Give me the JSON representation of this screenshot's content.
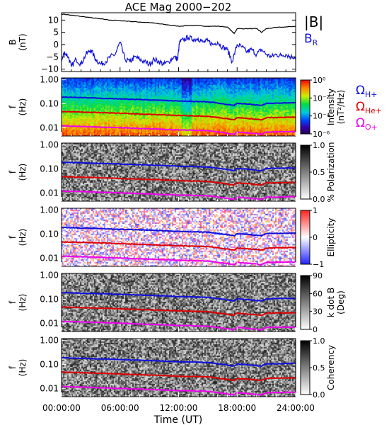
{
  "chart_data": {
    "type": "spectrogram",
    "title": "ACE Mag 2000−202",
    "x_axis": {
      "label": "Time (UT)",
      "range_hours": [
        0,
        24
      ],
      "tick_labels": [
        "00:00:00",
        "06:00:00",
        "12:00:00",
        "18:00:00",
        "24:00:00"
      ]
    },
    "panels": [
      {
        "kind": "line",
        "ylabel": "B",
        "ylabel_unit": "(nT)",
        "ylim": [
          -11,
          13
        ],
        "yticks": [
          "10",
          "5",
          "0",
          "−5",
          "−10"
        ],
        "legend": [
          {
            "label": "|B|",
            "color": "#000000"
          },
          {
            "label": "B",
            "sub": "R",
            "color": "#1010dd"
          }
        ],
        "series": [
          {
            "name": "|B|",
            "color": "#000000",
            "x": [
              0,
              1,
              2,
              3,
              4,
              5,
              6,
              7,
              8,
              9,
              10,
              11,
              12,
              13,
              14,
              15,
              16,
              17,
              17.7,
              18,
              19,
              20,
              20.5,
              21,
              22,
              23,
              24
            ],
            "y": [
              12.5,
              12,
              11.5,
              11,
              10.5,
              10,
              9.8,
              9.5,
              9.2,
              9,
              8.5,
              8,
              7.5,
              7.8,
              7.7,
              7.5,
              7.5,
              7.2,
              4.5,
              6.5,
              6.5,
              6.5,
              5,
              6.5,
              7,
              7.2,
              7.5
            ]
          },
          {
            "name": "B_R",
            "color": "#1010dd",
            "x": [
              0,
              0.3,
              0.7,
              1,
              1.5,
              2,
              2.5,
              3,
              3.5,
              4,
              4.5,
              5,
              5.5,
              6,
              6.5,
              7,
              7.5,
              8,
              8.5,
              9,
              9.5,
              10,
              10.5,
              11,
              11.5,
              11.9,
              12.1,
              12.5,
              13,
              13.5,
              14,
              14.5,
              15,
              15.5,
              16,
              16.5,
              17,
              17.5,
              18,
              18.5,
              19,
              19.5,
              20,
              20.5,
              21,
              21.5,
              22,
              22.5,
              23,
              23.5,
              24
            ],
            "y": [
              -7,
              -3,
              -5,
              -9,
              -6,
              -8,
              -4,
              -2,
              -6,
              -8,
              -7,
              -5,
              -4,
              1,
              -6,
              -7,
              -5,
              -6,
              -7,
              -8,
              -6,
              -7,
              -8,
              -7,
              -5,
              -6,
              1,
              2,
              3,
              2,
              2.5,
              1,
              1.5,
              0,
              1,
              -1,
              -2,
              -7,
              0,
              -1,
              -3,
              -2,
              -4,
              -2,
              -4,
              -5,
              -4,
              -4.5,
              -4,
              -5,
              -5
            ]
          }
        ]
      },
      {
        "kind": "spectrogram",
        "ylabel": "f",
        "ylabel_unit": "(Hz)",
        "yticks": [
          "1.00",
          "0.10",
          "0.01"
        ],
        "colorbar": {
          "palette": "rainbow",
          "label": "Intensity",
          "label_unit": "(nT²/Hz)",
          "tick_labels": [
            "10⁰",
            "10⁻²",
            "10⁻⁴",
            "10⁻⁶"
          ]
        },
        "cyclotron_labels": [
          {
            "label": "Ω",
            "sub": "H+",
            "color": "#1010dd"
          },
          {
            "label": "Ω",
            "sub": "He+",
            "color": "#dd0000"
          },
          {
            "label": "Ω",
            "sub": "O+",
            "color": "#ee00ee"
          }
        ]
      },
      {
        "kind": "spectrogram",
        "ylabel": "f",
        "ylabel_unit": "(Hz)",
        "yticks": [
          "1.00",
          "0.10",
          "0.01"
        ],
        "colorbar": {
          "palette": "gray",
          "label": "% Polarization",
          "label_unit": "",
          "tick_labels": [
            "1.0",
            "0.5",
            "0.0"
          ]
        }
      },
      {
        "kind": "spectrogram",
        "ylabel": "f",
        "ylabel_unit": "(Hz)",
        "yticks": [
          "1.00",
          "0.10",
          "0.01"
        ],
        "colorbar": {
          "palette": "bluered",
          "label": "Ellipticity",
          "label_unit": "",
          "tick_labels": [
            "1",
            "0",
            "−1"
          ]
        }
      },
      {
        "kind": "spectrogram",
        "ylabel": "f",
        "ylabel_unit": "(Hz)",
        "yticks": [
          "1.00",
          "0.10",
          "0.01"
        ],
        "colorbar": {
          "palette": "gray",
          "label": "k dot B",
          "label_unit": "(Deg)",
          "tick_labels": [
            "90",
            "60",
            "30",
            "0"
          ]
        }
      },
      {
        "kind": "spectrogram",
        "ylabel": "f",
        "ylabel_unit": "(Hz)",
        "yticks": [
          "1.00",
          "0.10",
          "0.01"
        ],
        "colorbar": {
          "palette": "gray",
          "label": "Coherency",
          "label_unit": "",
          "tick_labels": [
            "1.0",
            "0.5",
            "0.0"
          ]
        }
      }
    ],
    "gyrofrequency_curves": [
      {
        "name": "H+",
        "color": "#1010dd",
        "x": [
          0,
          3,
          6,
          9,
          12,
          15,
          17.7,
          18,
          20.5,
          21,
          24
        ],
        "y": [
          0.19,
          0.175,
          0.16,
          0.145,
          0.13,
          0.12,
          0.085,
          0.105,
          0.085,
          0.105,
          0.11
        ]
      },
      {
        "name": "He+",
        "color": "#dd0000",
        "x": [
          0,
          3,
          6,
          9,
          12,
          15,
          17.7,
          18,
          20.5,
          21,
          24
        ],
        "y": [
          0.0475,
          0.044,
          0.04,
          0.036,
          0.0325,
          0.03,
          0.0213,
          0.0263,
          0.0213,
          0.0263,
          0.0275
        ]
      },
      {
        "name": "O+",
        "color": "#ee00ee",
        "x": [
          0,
          3,
          6,
          9,
          12,
          15,
          17.7,
          18,
          20.5,
          21,
          24
        ],
        "y": [
          0.0119,
          0.011,
          0.01,
          0.009,
          0.0081,
          0.0075,
          0.0053,
          0.0066,
          0.0053,
          0.0066,
          0.0069
        ]
      }
    ]
  }
}
